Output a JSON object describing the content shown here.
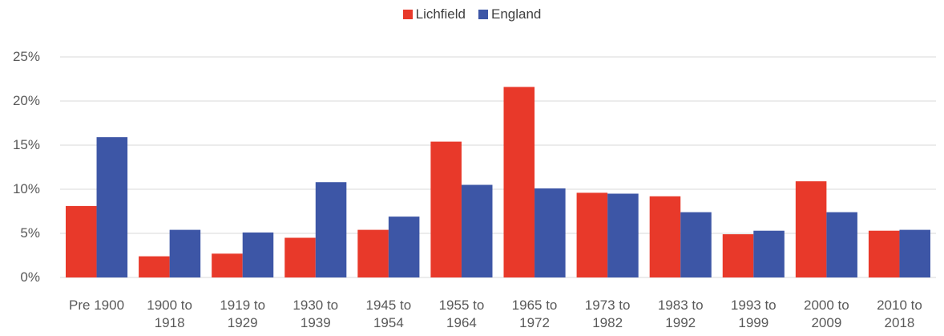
{
  "chart_data": {
    "type": "bar",
    "categories": [
      "Pre 1900",
      "1900 to 1918",
      "1919 to 1929",
      "1930 to 1939",
      "1945 to 1954",
      "1955 to 1964",
      "1965 to 1972",
      "1973 to 1982",
      "1983 to 1992",
      "1993 to 1999",
      "2000 to 2009",
      "2010 to 2018"
    ],
    "series": [
      {
        "name": "Lichfield",
        "color": "#e8392a",
        "values": [
          8.1,
          2.4,
          2.7,
          4.5,
          5.4,
          15.4,
          21.6,
          9.6,
          9.2,
          4.9,
          10.9,
          5.3
        ]
      },
      {
        "name": "England",
        "color": "#3d56a6",
        "values": [
          15.9,
          5.4,
          5.1,
          10.8,
          6.9,
          10.5,
          10.1,
          9.5,
          7.4,
          5.3,
          7.4,
          5.4
        ]
      }
    ],
    "ylim": [
      0,
      25
    ],
    "yticks": [
      {
        "value": 0,
        "label": "0%"
      },
      {
        "value": 5,
        "label": "5%"
      },
      {
        "value": 10,
        "label": "10%"
      },
      {
        "value": 15,
        "label": "15%"
      },
      {
        "value": 20,
        "label": "20%"
      },
      {
        "value": 25,
        "label": "25%"
      }
    ],
    "grid": true,
    "legend": "top"
  }
}
